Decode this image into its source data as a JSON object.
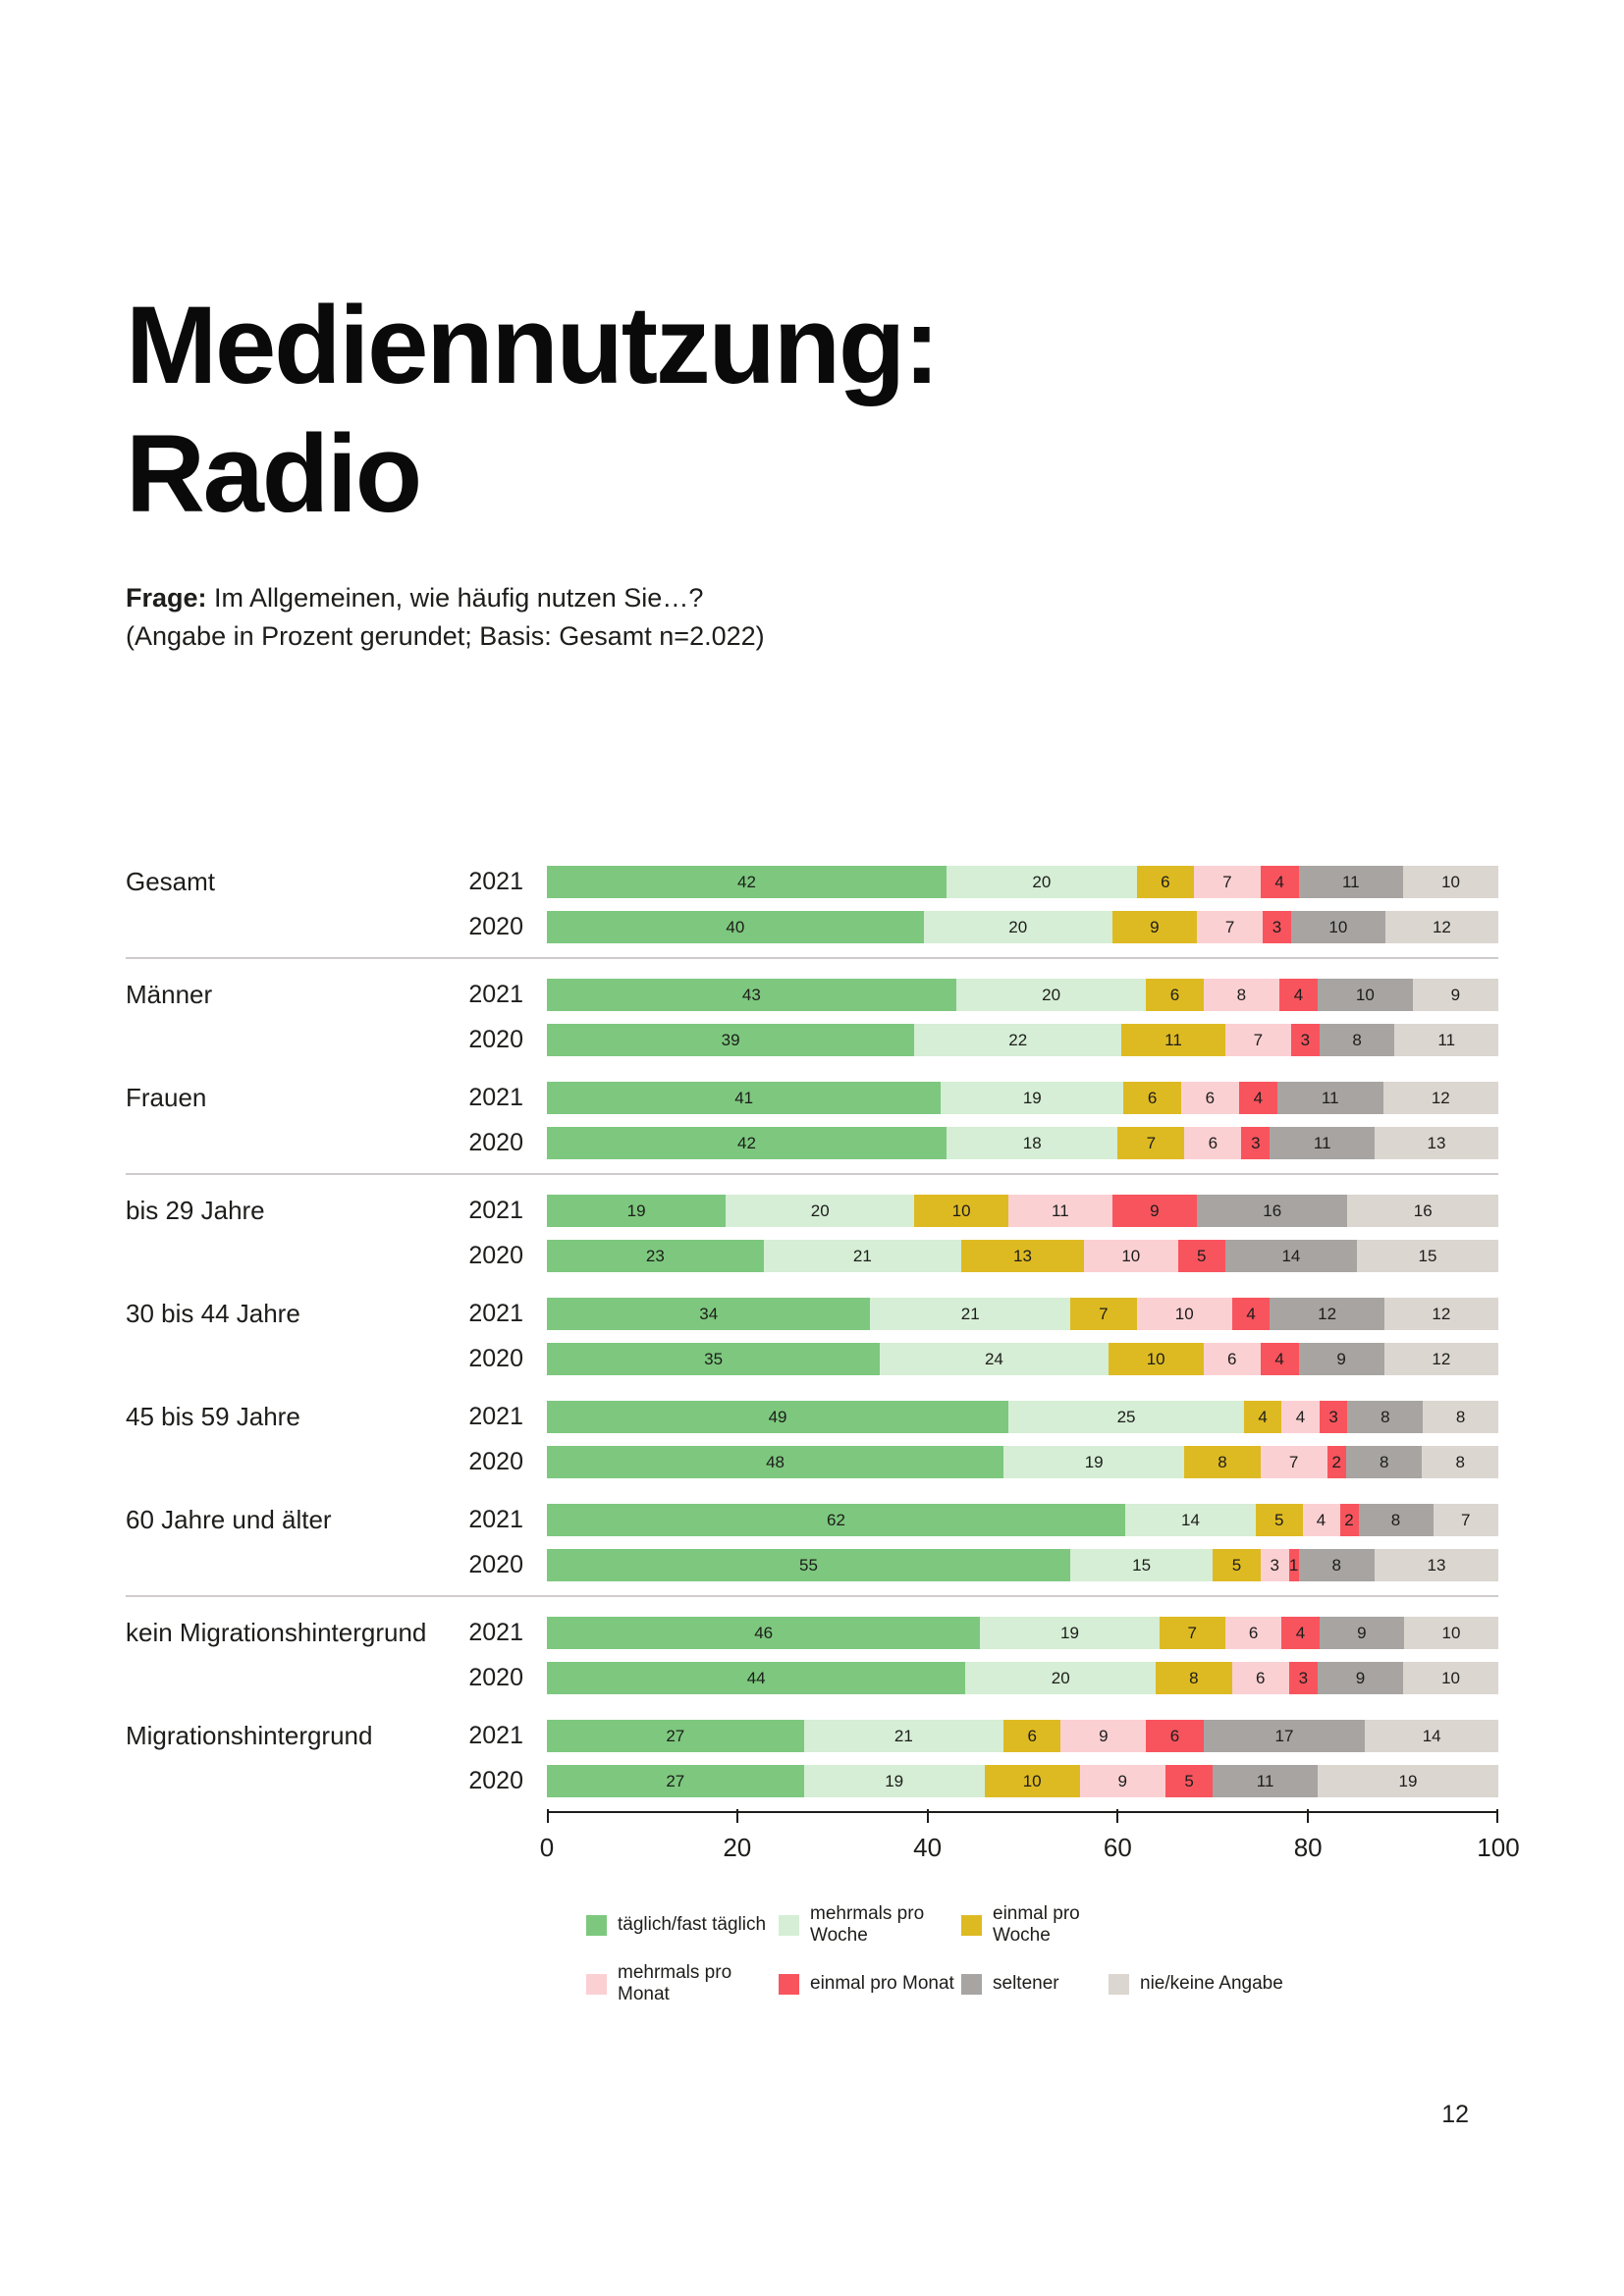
{
  "page": {
    "number": "12"
  },
  "title": {
    "line1": "Mediennutzung:",
    "line2": "Radio"
  },
  "question": {
    "label": "Frage:",
    "text": "Im Allgemeinen, wie häufig nutzen Sie…?",
    "note": "(Angabe in Prozent gerundet; Basis: Gesamt n=2.022)"
  },
  "chart_data": {
    "type": "bar",
    "stacked": true,
    "orientation": "horizontal",
    "xlim": [
      0,
      100
    ],
    "x_ticks": [
      0,
      20,
      40,
      60,
      80,
      100
    ],
    "legend_position": "bottom",
    "series": [
      {
        "name": "täglich/fast täglich",
        "color": "#7dc87e"
      },
      {
        "name": "mehrmals pro Woche",
        "color": "#d5eed5"
      },
      {
        "name": "einmal pro Woche",
        "color": "#deba22"
      },
      {
        "name": "mehrmals pro Monat",
        "color": "#fbd0d3"
      },
      {
        "name": "einmal pro Monat",
        "color": "#f8545e"
      },
      {
        "name": "seltener",
        "color": "#a7a4a2"
      },
      {
        "name": "nie/keine Angabe",
        "color": "#dbd6d0"
      }
    ],
    "legend_rows": [
      [
        0,
        1,
        2
      ],
      [
        3,
        4,
        5,
        6
      ]
    ],
    "groups": [
      {
        "label": "Gesamt",
        "divider_after": true,
        "rows": [
          {
            "year": "2021",
            "values": [
              42,
              20,
              6,
              7,
              4,
              11,
              10
            ]
          },
          {
            "year": "2020",
            "values": [
              40,
              20,
              9,
              7,
              3,
              10,
              12
            ]
          }
        ]
      },
      {
        "label": "Männer",
        "divider_after": false,
        "rows": [
          {
            "year": "2021",
            "values": [
              43,
              20,
              6,
              8,
              4,
              10,
              9
            ]
          },
          {
            "year": "2020",
            "values": [
              39,
              22,
              11,
              7,
              3,
              8,
              11
            ]
          }
        ]
      },
      {
        "label": "Frauen",
        "divider_after": true,
        "rows": [
          {
            "year": "2021",
            "values": [
              41,
              19,
              6,
              6,
              4,
              11,
              12
            ]
          },
          {
            "year": "2020",
            "values": [
              42,
              18,
              7,
              6,
              3,
              11,
              13
            ]
          }
        ]
      },
      {
        "label": "bis 29 Jahre",
        "divider_after": false,
        "rows": [
          {
            "year": "2021",
            "values": [
              19,
              20,
              10,
              11,
              9,
              16,
              16
            ]
          },
          {
            "year": "2020",
            "values": [
              23,
              21,
              13,
              10,
              5,
              14,
              15
            ]
          }
        ]
      },
      {
        "label": "30 bis 44 Jahre",
        "divider_after": false,
        "rows": [
          {
            "year": "2021",
            "values": [
              34,
              21,
              7,
              10,
              4,
              12,
              12
            ]
          },
          {
            "year": "2020",
            "values": [
              35,
              24,
              10,
              6,
              4,
              9,
              12
            ]
          }
        ]
      },
      {
        "label": "45 bis 59 Jahre",
        "divider_after": false,
        "rows": [
          {
            "year": "2021",
            "values": [
              49,
              25,
              4,
              4,
              3,
              8,
              8
            ]
          },
          {
            "year": "2020",
            "values": [
              48,
              19,
              8,
              7,
              2,
              8,
              8
            ]
          }
        ]
      },
      {
        "label": "60 Jahre und älter",
        "divider_after": true,
        "rows": [
          {
            "year": "2021",
            "values": [
              62,
              14,
              5,
              4,
              2,
              8,
              7
            ]
          },
          {
            "year": "2020",
            "values": [
              55,
              15,
              5,
              3,
              1,
              8,
              13
            ]
          }
        ]
      },
      {
        "label": "kein Migrationshintergrund",
        "divider_after": false,
        "rows": [
          {
            "year": "2021",
            "values": [
              46,
              19,
              7,
              6,
              4,
              9,
              10
            ]
          },
          {
            "year": "2020",
            "values": [
              44,
              20,
              8,
              6,
              3,
              9,
              10
            ]
          }
        ]
      },
      {
        "label": "Migrationshintergrund",
        "divider_after": false,
        "rows": [
          {
            "year": "2021",
            "values": [
              27,
              21,
              6,
              9,
              6,
              17,
              14
            ]
          },
          {
            "year": "2020",
            "values": [
              27,
              19,
              10,
              9,
              5,
              11,
              19
            ]
          }
        ]
      }
    ]
  }
}
